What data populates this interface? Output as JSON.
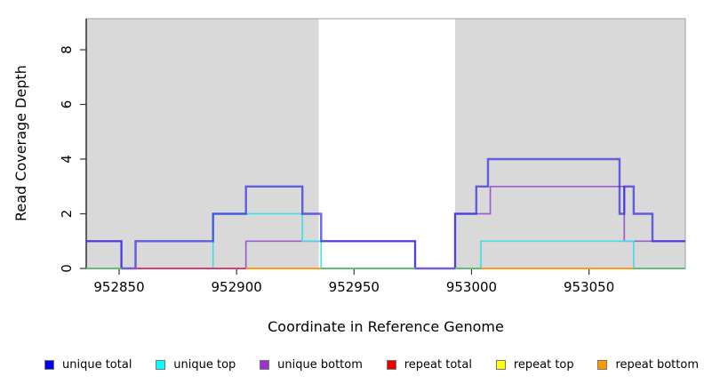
{
  "figure": {
    "x_axis": {
      "label": "Coordinate in Reference Genome",
      "ticks": [
        952850,
        952900,
        952950,
        953000,
        953050
      ],
      "range": [
        952836,
        953091
      ]
    },
    "y_axis": {
      "label": "Read Coverage Depth",
      "ticks": [
        0,
        2,
        4,
        6,
        8
      ],
      "range": [
        0,
        9.1
      ]
    },
    "legend": [
      {
        "label": "unique total",
        "color": "#0000ee"
      },
      {
        "label": "unique top",
        "color": "#00ffff"
      },
      {
        "label": "unique bottom",
        "color": "#9933cc"
      },
      {
        "label": "repeat total",
        "color": "#ee0000"
      },
      {
        "label": "repeat top",
        "color": "#ffff00"
      },
      {
        "label": "repeat bottom",
        "color": "#ff9900"
      }
    ],
    "chart_data": {
      "type": "step",
      "x_unit": "genome coordinate (bp)",
      "shade_color": "#d9d9d9",
      "shaded_regions": [
        [
          952836,
          952935
        ],
        [
          952993,
          953091
        ]
      ],
      "series": [
        {
          "name": "unique total",
          "color": "#2e2ee0",
          "line_width": 2.4,
          "opacity": 0.72,
          "steps": [
            [
              952836,
              1
            ],
            [
              952851,
              0
            ],
            [
              952857,
              1
            ],
            [
              952890,
              2
            ],
            [
              952904,
              3
            ],
            [
              952928,
              2
            ],
            [
              952936,
              1
            ],
            [
              952976,
              0
            ],
            [
              952993,
              2
            ],
            [
              953002,
              3
            ],
            [
              953007,
              4
            ],
            [
              953063,
              2
            ],
            [
              953065,
              3
            ],
            [
              953069,
              2
            ],
            [
              953077,
              1
            ]
          ]
        },
        {
          "name": "unique top",
          "color": "#3fdde6",
          "line_width": 1.7,
          "opacity": 0.95,
          "steps": [
            [
              952836,
              0
            ],
            [
              952890,
              2
            ],
            [
              952928,
              1
            ],
            [
              952936,
              0
            ],
            [
              953004,
              1
            ],
            [
              953069,
              0
            ]
          ]
        },
        {
          "name": "unique bottom",
          "color": "#9a55d2",
          "line_width": 1.7,
          "opacity": 0.95,
          "steps": [
            [
              952836,
              1
            ],
            [
              952851,
              0
            ],
            [
              952904,
              1
            ],
            [
              952976,
              0
            ],
            [
              952993,
              2
            ],
            [
              953008,
              3
            ],
            [
              953065,
              1
            ]
          ]
        },
        {
          "name": "repeat total",
          "color": "#d04070",
          "line_width": 1.5,
          "opacity": 0.9,
          "steps": [
            [
              952836,
              0
            ]
          ]
        },
        {
          "name": "repeat top",
          "color": "#f2e735",
          "line_width": 1.5,
          "opacity": 0.9,
          "steps": [
            [
              952836,
              0
            ]
          ]
        },
        {
          "name": "repeat bottom",
          "color": "#ff9a1a",
          "line_width": 2.0,
          "opacity": 1,
          "steps": [
            [
              952836,
              0
            ]
          ]
        }
      ],
      "baseline_segments": [
        {
          "from": 952836,
          "to": 952851,
          "color": "#63bd74"
        },
        {
          "from": 952851,
          "to": 952857,
          "color": "#7b5bd6"
        },
        {
          "from": 952857,
          "to": 952904,
          "color": "#d04070"
        },
        {
          "from": 952904,
          "to": 952936,
          "color": "#ff9a1a"
        },
        {
          "from": 952936,
          "to": 952976,
          "color": "#63bd74"
        },
        {
          "from": 952976,
          "to": 952993,
          "color": "#7b5bd6"
        },
        {
          "from": 952993,
          "to": 953004,
          "color": "#63bd74"
        },
        {
          "from": 953004,
          "to": 953069,
          "color": "#ff9a1a"
        },
        {
          "from": 953069,
          "to": 953091,
          "color": "#63bd74"
        }
      ]
    }
  }
}
